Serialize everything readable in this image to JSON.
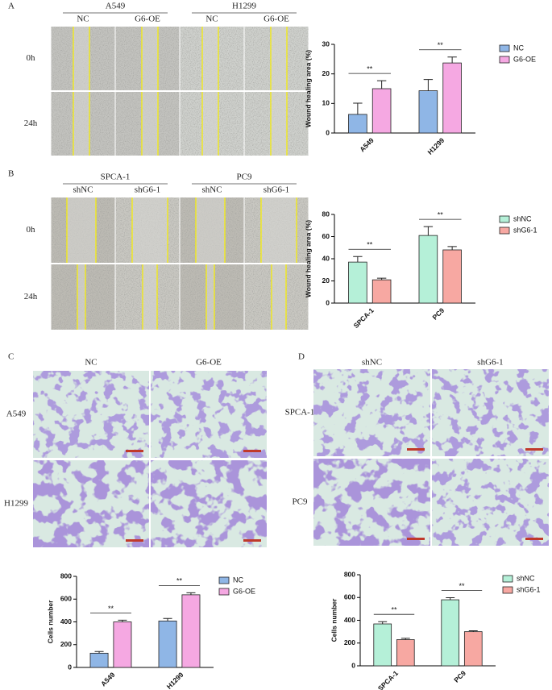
{
  "panels": [
    {
      "label": "A",
      "groups": [
        "A549",
        "H1299"
      ],
      "columns": [
        "NC",
        "G6-OE",
        "NC",
        "G6-OE"
      ],
      "rows": [
        "0h",
        "24h"
      ]
    },
    {
      "label": "B",
      "groups": [
        "SPCA-1",
        "PC9"
      ],
      "columns": [
        "shNC",
        "shG6-1",
        "shNC",
        "shG6-1"
      ],
      "rows": [
        "0h",
        "24h"
      ]
    },
    {
      "label": "C",
      "columns": [
        "NC",
        "G6-OE"
      ],
      "rows": [
        "A549",
        "H1299"
      ]
    },
    {
      "label": "D",
      "columns": [
        "shNC",
        "shG6-1"
      ],
      "rows": [
        "SPCA-1",
        "PC9"
      ]
    }
  ],
  "chart_data": [
    {
      "type": "bar",
      "ylabel": "Wound healing area (%)",
      "categories": [
        "A549",
        "H1299"
      ],
      "series": [
        {
          "name": "NC",
          "color": "#8fb6e6",
          "values": [
            6.3,
            14.3
          ],
          "errors": [
            3.8,
            3.8
          ]
        },
        {
          "name": "G6-OE",
          "color": "#f5a8e2",
          "values": [
            15,
            23.7
          ],
          "errors": [
            2.7,
            2
          ]
        }
      ],
      "ylim": [
        0,
        30
      ],
      "yticks": [
        0,
        10,
        20,
        30
      ],
      "annotations": [
        "**",
        "**"
      ],
      "legend": "right"
    },
    {
      "type": "bar",
      "ylabel": "Wound healing area (%)",
      "categories": [
        "SPCA-1",
        "PC9"
      ],
      "series": [
        {
          "name": "shNC",
          "color": "#b5f0d8",
          "values": [
            37,
            61
          ],
          "errors": [
            5,
            8
          ]
        },
        {
          "name": "shG6-1",
          "color": "#f7a8a2",
          "values": [
            21,
            48
          ],
          "errors": [
            1.5,
            3
          ]
        }
      ],
      "ylim": [
        0,
        80
      ],
      "yticks": [
        0,
        20,
        40,
        60,
        80
      ],
      "annotations": [
        "**",
        "**"
      ],
      "legend": "right"
    },
    {
      "type": "bar",
      "ylabel": "Cells number",
      "categories": [
        "A549",
        "H1299"
      ],
      "series": [
        {
          "name": "NC",
          "color": "#8fb6e6",
          "values": [
            125,
            408
          ],
          "errors": [
            15,
            22
          ]
        },
        {
          "name": "G6-OE",
          "color": "#f5a8e2",
          "values": [
            400,
            638
          ],
          "errors": [
            15,
            18
          ]
        }
      ],
      "ylim": [
        0,
        800
      ],
      "yticks": [
        0,
        200,
        400,
        600,
        800
      ],
      "annotations": [
        "**",
        "**"
      ],
      "legend": "right"
    },
    {
      "type": "bar",
      "ylabel": "Cells number",
      "categories": [
        "SPCA-1",
        "PC9"
      ],
      "series": [
        {
          "name": "shNC",
          "color": "#b5f0d8",
          "values": [
            368,
            580
          ],
          "errors": [
            20,
            18
          ]
        },
        {
          "name": "shG6-1",
          "color": "#f7a8a2",
          "values": [
            230,
            300
          ],
          "errors": [
            12,
            8
          ]
        }
      ],
      "ylim": [
        0,
        800
      ],
      "yticks": [
        0,
        200,
        400,
        600,
        800
      ],
      "annotations": [
        "**",
        "**"
      ],
      "legend": "right"
    }
  ]
}
